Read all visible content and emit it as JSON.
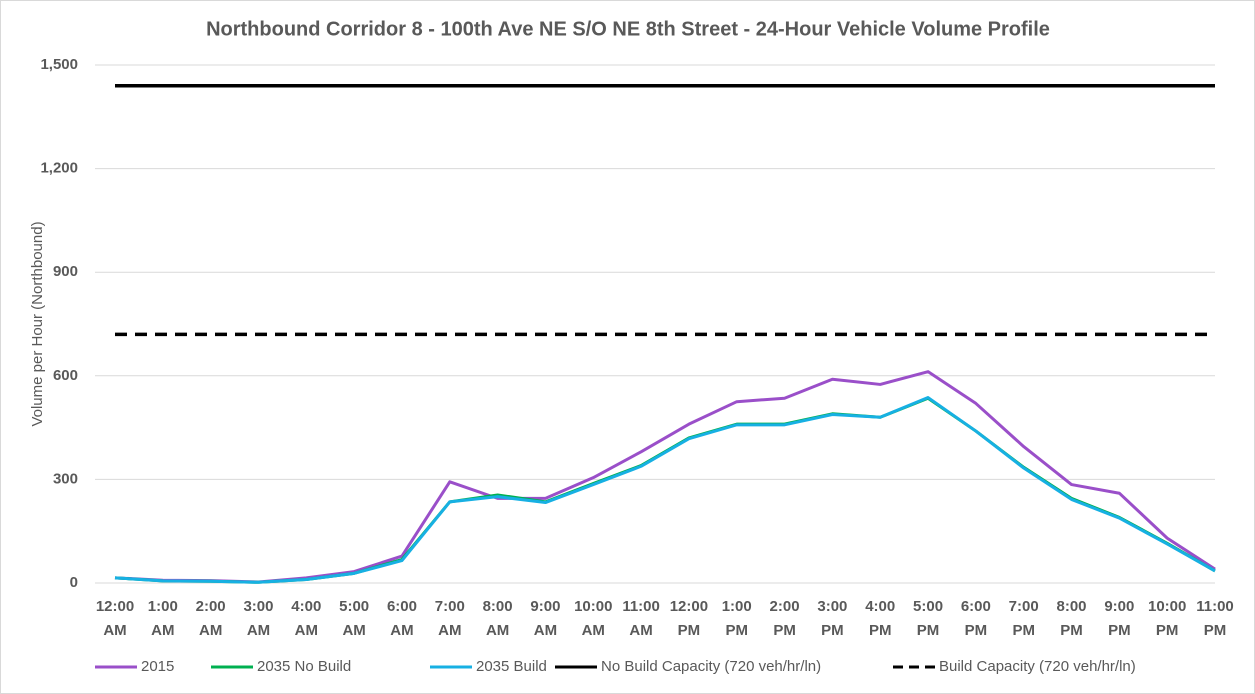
{
  "chart_data": {
    "type": "line",
    "title": "Northbound Corridor 8 - 100th Ave NE S/O NE 8th Street - 24-Hour Vehicle Volume Profile",
    "y_label": "Volume per Hour (Northbound)",
    "categories": [
      "12:00 AM",
      "1:00 AM",
      "2:00 AM",
      "3:00 AM",
      "4:00 AM",
      "5:00 AM",
      "6:00 AM",
      "7:00 AM",
      "8:00 AM",
      "9:00 AM",
      "10:00 AM",
      "11:00 AM",
      "12:00 PM",
      "1:00 PM",
      "2:00 PM",
      "3:00 PM",
      "4:00 PM",
      "5:00 PM",
      "6:00 PM",
      "7:00 PM",
      "8:00 PM",
      "9:00 PM",
      "10:00 PM",
      "11:00 PM"
    ],
    "series": [
      {
        "name": "2015",
        "color": "#9a4fc9",
        "values": [
          15,
          8,
          7,
          3,
          15,
          33,
          78,
          293,
          245,
          245,
          305,
          380,
          460,
          525,
          535,
          590,
          575,
          612,
          520,
          395,
          285,
          260,
          130,
          40
        ]
      },
      {
        "name": "2035 No Build",
        "color": "#00b050",
        "values": [
          15,
          6,
          5,
          2,
          10,
          28,
          68,
          235,
          255,
          235,
          288,
          340,
          420,
          460,
          460,
          490,
          480,
          535,
          440,
          335,
          245,
          190,
          115,
          35
        ]
      },
      {
        "name": "2035 Build",
        "color": "#17b0e3",
        "values": [
          15,
          6,
          5,
          2,
          10,
          28,
          65,
          235,
          250,
          233,
          285,
          338,
          418,
          458,
          458,
          488,
          480,
          537,
          440,
          333,
          242,
          188,
          113,
          35
        ]
      },
      {
        "name": "No Build Capacity (720 veh/hr/ln)",
        "color": "#000000",
        "values": [
          1440,
          1440,
          1440,
          1440,
          1440,
          1440,
          1440,
          1440,
          1440,
          1440,
          1440,
          1440,
          1440,
          1440,
          1440,
          1440,
          1440,
          1440,
          1440,
          1440,
          1440,
          1440,
          1440,
          1440
        ]
      },
      {
        "name": "Build Capacity (720 veh/hr/ln)",
        "color": "#000000",
        "dashed": true,
        "values": [
          720,
          720,
          720,
          720,
          720,
          720,
          720,
          720,
          720,
          720,
          720,
          720,
          720,
          720,
          720,
          720,
          720,
          720,
          720,
          720,
          720,
          720,
          720,
          720
        ]
      }
    ],
    "ylim": [
      0,
      1500
    ],
    "yticks": [
      0,
      300,
      600,
      900,
      {
        "value": 1200,
        "label": "1,200"
      },
      {
        "value": 1500,
        "label": "1,500"
      }
    ],
    "grid": true,
    "legend": "bottom"
  }
}
